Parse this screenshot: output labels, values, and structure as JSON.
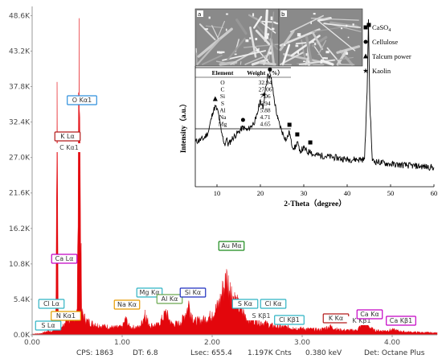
{
  "chart_data": [
    {
      "type": "line",
      "title": "",
      "xlabel": "",
      "ylabel": "",
      "xlim": [
        0,
        4.5
      ],
      "ylim": [
        0,
        50000
      ],
      "x_ticks": [
        "0.00",
        "1.00",
        "2.00",
        "3.00",
        "4.00"
      ],
      "y_ticks": [
        "0.0K",
        "5.4K",
        "10.8K",
        "16.2K",
        "21.6K",
        "27.0K",
        "32.4K",
        "37.8K",
        "43.2K",
        "48.6K"
      ],
      "fill_color": "#e3060c",
      "series": [
        {
          "points": [
            [
              0.0,
              150
            ],
            [
              0.1,
              250
            ],
            [
              0.18,
              700
            ],
            [
              0.2,
              600
            ],
            [
              0.22,
              500
            ],
            [
              0.24,
              1200
            ],
            [
              0.262,
              3000
            ],
            [
              0.277,
              38500
            ],
            [
              0.29,
              4000
            ],
            [
              0.31,
              1800
            ],
            [
              0.33,
              1200
            ],
            [
              0.36,
              1800
            ],
            [
              0.39,
              3000
            ],
            [
              0.42,
              2500
            ],
            [
              0.46,
              3000
            ],
            [
              0.5,
              4000
            ],
            [
              0.523,
              48200
            ],
            [
              0.55,
              4000
            ],
            [
              0.6,
              2500
            ],
            [
              0.7,
              1800
            ],
            [
              0.8,
              1500
            ],
            [
              0.9,
              1300
            ],
            [
              1.0,
              1350
            ],
            [
              1.041,
              2800
            ],
            [
              1.08,
              1400
            ],
            [
              1.15,
              1300
            ],
            [
              1.2,
              1400
            ],
            [
              1.254,
              3800
            ],
            [
              1.3,
              1700
            ],
            [
              1.4,
              1700
            ],
            [
              1.487,
              3900
            ],
            [
              1.55,
              1900
            ],
            [
              1.65,
              2000
            ],
            [
              1.74,
              5200
            ],
            [
              1.8,
              2400
            ],
            [
              1.9,
              2600
            ],
            [
              2.0,
              3500
            ],
            [
              2.08,
              5500
            ],
            [
              2.12,
              8000
            ],
            [
              2.16,
              10000
            ],
            [
              2.2,
              8000
            ],
            [
              2.26,
              6000
            ],
            [
              2.31,
              4500
            ],
            [
              2.4,
              2800
            ],
            [
              2.5,
              2400
            ],
            [
              2.6,
              2000
            ],
            [
              2.62,
              1800
            ],
            [
              2.7,
              1500
            ],
            [
              2.8,
              1400
            ],
            [
              2.9,
              1200
            ],
            [
              3.0,
              1100
            ],
            [
              3.1,
              1000
            ],
            [
              3.2,
              900
            ],
            [
              3.31,
              1500
            ],
            [
              3.4,
              900
            ],
            [
              3.5,
              800
            ],
            [
              3.6,
              800
            ],
            [
              3.69,
              2100
            ],
            [
              3.8,
              800
            ],
            [
              3.9,
              700
            ],
            [
              4.01,
              900
            ],
            [
              4.1,
              600
            ],
            [
              4.2,
              500
            ],
            [
              4.3,
              450
            ],
            [
              4.4,
              400
            ],
            [
              4.5,
              350
            ]
          ]
        }
      ],
      "peak_labels": [
        {
          "text": "O  Kα1",
          "x": 0.523,
          "color": "#2f8fdc"
        },
        {
          "text": "K  Lα",
          "x": 0.277,
          "color": "#b31b1b"
        },
        {
          "text": "C  Kα1",
          "x": 0.277,
          "color": "#555555"
        },
        {
          "text": "Ca Lα",
          "x": 0.341,
          "color": "#c400c4"
        },
        {
          "text": "Cl Lα",
          "x": 0.182,
          "color": "#2fb3c4"
        },
        {
          "text": "N  Kα1",
          "x": 0.392,
          "color": "#e0a000"
        },
        {
          "text": "S  Lα",
          "x": 0.149,
          "color": "#2fb3c4"
        },
        {
          "text": "Na Kα",
          "x": 1.041,
          "color": "#e89a00"
        },
        {
          "text": "Mg Kα",
          "x": 1.254,
          "color": "#2fb3c4"
        },
        {
          "text": "Al Kα",
          "x": 1.487,
          "color": "#6aa84f"
        },
        {
          "text": "Si Kα",
          "x": 1.74,
          "color": "#1d2fbf"
        },
        {
          "text": "Au Mα",
          "x": 2.123,
          "color": "#1b8a1b"
        },
        {
          "text": "S  Kα",
          "x": 2.307,
          "color": "#2fb3c4"
        },
        {
          "text": "S  Kβ1",
          "x": 2.464,
          "color": "#777777"
        },
        {
          "text": "Cl Kα",
          "x": 2.622,
          "color": "#2fb3c4"
        },
        {
          "text": "Cl Kβ1",
          "x": 2.816,
          "color": "#2fb3c4"
        },
        {
          "text": "K  Kα",
          "x": 3.313,
          "color": "#b31b1b"
        },
        {
          "text": "K  Kβ1",
          "x": 3.59,
          "color": "#777777"
        },
        {
          "text": "Ca Kα",
          "x": 3.691,
          "color": "#c400c4"
        },
        {
          "text": "Ca Kβ1",
          "x": 4.012,
          "color": "#c400c4"
        }
      ]
    },
    {
      "type": "line",
      "title": "",
      "xlabel": "2-Theta（degree）",
      "ylabel": "Intensity（a.u.）",
      "xlim": [
        5,
        60
      ],
      "x_ticks": [
        "10",
        "20",
        "30",
        "40",
        "50",
        "60"
      ],
      "series": [
        {
          "points": [
            [
              5,
              0.24
            ],
            [
              6,
              0.25
            ],
            [
              7,
              0.26
            ],
            [
              8,
              0.3
            ],
            [
              9,
              0.42
            ],
            [
              9.6,
              0.46
            ],
            [
              10.3,
              0.42
            ],
            [
              11,
              0.3
            ],
            [
              11.8,
              0.22
            ],
            [
              12.2,
              0.26
            ],
            [
              12.6,
              0.22
            ],
            [
              13.5,
              0.26
            ],
            [
              15,
              0.3
            ],
            [
              16,
              0.33
            ],
            [
              17,
              0.31
            ],
            [
              18,
              0.34
            ],
            [
              19,
              0.38
            ],
            [
              20,
              0.5
            ],
            [
              20.6,
              0.44
            ],
            [
              21.2,
              0.58
            ],
            [
              21.8,
              0.66
            ],
            [
              22.5,
              0.63
            ],
            [
              23.2,
              0.5
            ],
            [
              24,
              0.38
            ],
            [
              25,
              0.3
            ],
            [
              26,
              0.25
            ],
            [
              26.7,
              0.3
            ],
            [
              27.2,
              0.22
            ],
            [
              28,
              0.2
            ],
            [
              28.5,
              0.24
            ],
            [
              29,
              0.18
            ],
            [
              30,
              0.2
            ],
            [
              31,
              0.17
            ],
            [
              31.5,
              0.19
            ],
            [
              32,
              0.16
            ],
            [
              35,
              0.15
            ],
            [
              40,
              0.13
            ],
            [
              44,
              0.13
            ],
            [
              44.6,
              0.55
            ],
            [
              44.9,
              1.0
            ],
            [
              45.2,
              0.5
            ],
            [
              45.8,
              0.12
            ],
            [
              50,
              0.1
            ],
            [
              55,
              0.09
            ],
            [
              60,
              0.08
            ]
          ]
        }
      ],
      "markers": [
        {
          "symbol": "triangle",
          "x": 9.6
        },
        {
          "symbol": "circle",
          "x": 16.0
        },
        {
          "symbol": "star",
          "x": 20.8
        },
        {
          "symbol": "circle",
          "x": 22.2
        },
        {
          "symbol": "square",
          "x": 26.7
        },
        {
          "symbol": "square",
          "x": 28.5
        },
        {
          "symbol": "square",
          "x": 31.5
        },
        {
          "symbol": "square",
          "x": 45.0
        }
      ],
      "legend_position": "top-right",
      "legend": [
        {
          "symbol": "square",
          "label": "CaSO",
          "sub": "4"
        },
        {
          "symbol": "circle",
          "label": "Cellulose",
          "sub": ""
        },
        {
          "symbol": "triangle",
          "label": "Talcum power",
          "sub": ""
        },
        {
          "symbol": "star",
          "label": "Kaolin",
          "sub": ""
        }
      ],
      "micrograph_panels": [
        "a",
        "b"
      ]
    },
    {
      "type": "table",
      "columns": [
        "Element",
        "Weight（%）"
      ],
      "rows": [
        [
          "O",
          "32.94"
        ],
        [
          "C",
          "27.06"
        ],
        [
          "Si",
          "7.06"
        ],
        [
          "S",
          "6.94"
        ],
        [
          "Al",
          "5.88"
        ],
        [
          "Na",
          "4.71"
        ],
        [
          "Mg",
          "4.65"
        ]
      ]
    }
  ],
  "status_bar": {
    "cps": "CPS: 1863",
    "dt": "DT: 6.8",
    "lsec": "Lsec: 655.4",
    "cnts": "1.197K Cnts",
    "kev": "0.380 keV",
    "det": "Det: Octane Plus"
  }
}
